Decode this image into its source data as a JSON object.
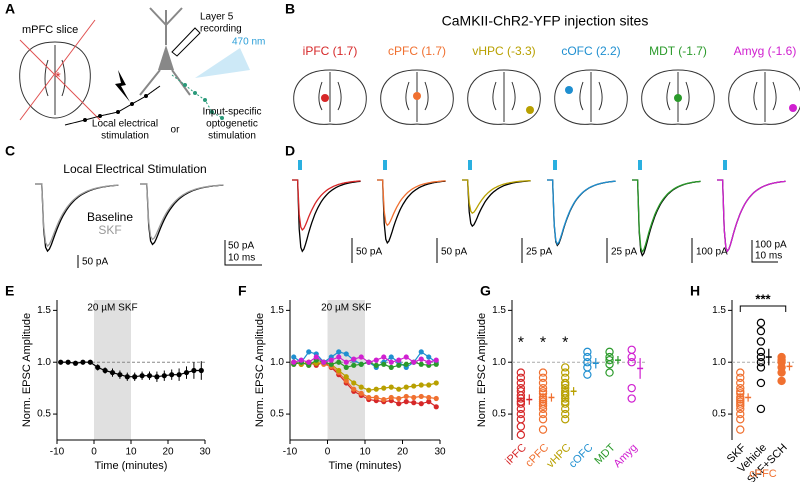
{
  "panels": {
    "A": {
      "label": "A",
      "title": "mPFC slice",
      "recording": [
        "Layer 5",
        "recording"
      ],
      "light": "470 nm",
      "local": [
        "Local electrical",
        "stimulation"
      ],
      "or": "or",
      "optogenetic": [
        "Input-specific",
        "optogenetic",
        "stimulation"
      ]
    },
    "B": {
      "label": "B",
      "title": "CaMKII-ChR2-YFP injection sites",
      "sites": [
        {
          "name": "iPFC (1.7)",
          "color": "#d62728"
        },
        {
          "name": "cPFC (1.7)",
          "color": "#f07030"
        },
        {
          "name": "vHPC (-3.3)",
          "color": "#b8a000"
        },
        {
          "name": "cOFC (2.2)",
          "color": "#1f8fd0"
        },
        {
          "name": "MDT (-1.7)",
          "color": "#2a9a2a"
        },
        {
          "name": "Amyg (-1.6)",
          "color": "#d020d0"
        }
      ]
    },
    "C": {
      "label": "C",
      "title": "Local Electrical Stimulation",
      "legend": [
        {
          "name": "Baseline",
          "color": "#000000"
        },
        {
          "name": "SKF",
          "color": "#999999"
        }
      ],
      "scalebars": [
        "50 pA",
        "50 pA",
        "10 ms"
      ]
    },
    "D": {
      "label": "D",
      "scalebars": [
        "50 pA",
        "50 pA",
        "25 pA",
        "25 pA",
        "100 pA",
        "100 pA",
        "10 ms"
      ]
    }
  },
  "chart_data": [
    {
      "panel": "E",
      "type": "line",
      "annotation": "20 µM SKF",
      "shade": [
        0,
        10
      ],
      "reference": 1,
      "xlabel": "Time (minutes)",
      "ylabel": "Norm. EPSC Amplitude",
      "x": [
        -9,
        -7,
        -5,
        -3,
        -1,
        1,
        3,
        5,
        7,
        9,
        11,
        13,
        15,
        17,
        19,
        21,
        23,
        25,
        27,
        29
      ],
      "series": [
        {
          "color": "#000000",
          "values": [
            1.0,
            1.0,
            0.99,
            1.0,
            1.0,
            0.95,
            0.92,
            0.9,
            0.88,
            0.86,
            0.86,
            0.87,
            0.87,
            0.86,
            0.87,
            0.88,
            0.88,
            0.9,
            0.92,
            0.92
          ],
          "errors": [
            0.02,
            0.02,
            0.02,
            0.02,
            0.02,
            0.03,
            0.03,
            0.04,
            0.04,
            0.04,
            0.04,
            0.04,
            0.04,
            0.05,
            0.05,
            0.05,
            0.06,
            0.06,
            0.08,
            0.09
          ]
        }
      ],
      "xlim": [
        -10,
        30
      ],
      "xticks": [
        -10,
        0,
        10,
        20,
        30
      ],
      "ylim": [
        0.25,
        1.6
      ],
      "yticks": [
        0.5,
        {
          "value": 1,
          "label": "1.0"
        },
        1.5
      ]
    },
    {
      "panel": "F",
      "type": "line",
      "annotation": "20 µM SKF",
      "shade": [
        0,
        10
      ],
      "reference": 1,
      "xlabel": "Time (minutes)",
      "ylabel": "Norm. EPSC Amplitude",
      "x": [
        -9,
        -7,
        -5,
        -3,
        -1,
        1,
        3,
        5,
        7,
        9,
        11,
        13,
        15,
        17,
        19,
        21,
        23,
        25,
        27,
        29
      ],
      "series": [
        {
          "color": "#d62728",
          "values": [
            1.0,
            0.98,
            1.0,
            0.97,
            1.0,
            0.95,
            0.88,
            0.8,
            0.72,
            0.68,
            0.64,
            0.63,
            0.62,
            0.63,
            0.6,
            0.62,
            0.61,
            0.6,
            0.62,
            0.57
          ]
        },
        {
          "color": "#f07030",
          "values": [
            0.98,
            1.0,
            0.97,
            1.0,
            0.98,
            0.96,
            0.9,
            0.82,
            0.74,
            0.7,
            0.66,
            0.66,
            0.64,
            0.66,
            0.65,
            0.67,
            0.66,
            0.67,
            0.66,
            0.65
          ]
        },
        {
          "color": "#b8a000",
          "values": [
            1.0,
            0.98,
            1.0,
            0.99,
            1.0,
            0.98,
            0.92,
            0.86,
            0.8,
            0.76,
            0.73,
            0.74,
            0.75,
            0.76,
            0.74,
            0.76,
            0.77,
            0.78,
            0.78,
            0.8
          ]
        },
        {
          "color": "#1f8fd0",
          "values": [
            1.05,
            1.0,
            1.1,
            1.08,
            1.0,
            1.05,
            1.1,
            1.08,
            1.02,
            0.98,
            1.0,
            0.95,
            1.0,
            1.05,
            1.0,
            0.95,
            1.0,
            1.1,
            1.05,
            1.0
          ]
        },
        {
          "color": "#2a9a2a",
          "values": [
            0.98,
            1.0,
            0.97,
            1.02,
            1.0,
            0.98,
            1.0,
            0.95,
            0.97,
            0.98,
            1.0,
            0.97,
            0.98,
            0.95,
            0.97,
            0.98,
            1.0,
            0.98,
            0.97,
            0.98
          ]
        },
        {
          "color": "#d020d0",
          "values": [
            1.0,
            1.02,
            1.0,
            1.05,
            1.0,
            1.02,
            1.05,
            1.0,
            1.03,
            1.05,
            1.0,
            1.02,
            1.05,
            1.0,
            1.02,
            1.05,
            1.0,
            1.03,
            1.0,
            1.02
          ]
        }
      ],
      "xlim": [
        -10,
        30
      ],
      "xticks": [
        -10,
        0,
        10,
        20,
        30
      ],
      "ylim": [
        0.25,
        1.6
      ],
      "yticks": [
        0.5,
        {
          "value": 1,
          "label": "1.0"
        },
        1.5
      ]
    },
    {
      "panel": "G",
      "type": "strip",
      "ylabel": "Norm. EPSC Amplitude",
      "reference": 1,
      "categories": [
        "iPFC",
        "cPFC",
        "vHPC",
        "cOFC",
        "MDT",
        "Amyg"
      ],
      "colors": [
        "#d62728",
        "#f07030",
        "#b8a000",
        "#1f8fd0",
        "#2a9a2a",
        "#d020d0"
      ],
      "filled": [
        false,
        false,
        false,
        false,
        false,
        false
      ],
      "significance": [
        "*",
        "*",
        "*",
        null,
        null,
        null
      ],
      "points": [
        [
          0.3,
          0.38,
          0.45,
          0.5,
          0.55,
          0.6,
          0.62,
          0.65,
          0.68,
          0.72,
          0.75,
          0.8,
          0.85,
          0.9
        ],
        [
          0.35,
          0.45,
          0.5,
          0.55,
          0.58,
          0.6,
          0.62,
          0.64,
          0.66,
          0.7,
          0.72,
          0.75,
          0.8,
          0.85,
          0.9
        ],
        [
          0.45,
          0.5,
          0.55,
          0.6,
          0.62,
          0.65,
          0.68,
          0.7,
          0.72,
          0.75,
          0.78,
          0.8,
          0.85,
          0.9,
          0.95
        ],
        [
          0.88,
          0.95,
          1.0,
          1.05,
          1.1
        ],
        [
          0.9,
          0.98,
          1.02,
          1.05,
          1.1
        ],
        [
          0.65,
          0.75,
          1.0,
          1.05,
          1.12
        ]
      ],
      "means": [
        0.64,
        0.66,
        0.72,
        0.99,
        1.02,
        0.94
      ],
      "sems": [
        0.05,
        0.04,
        0.04,
        0.05,
        0.04,
        0.1
      ],
      "ylim": [
        0.25,
        1.6
      ],
      "yticks": [
        0.5,
        {
          "value": 1,
          "label": "1.0"
        },
        1.5
      ]
    },
    {
      "panel": "H",
      "type": "strip",
      "reference": 1,
      "group": "cPFC",
      "group_color": "#f07030",
      "comparison": {
        "label": "***",
        "between": [
          "SKF",
          "Vehicle"
        ]
      },
      "categories": [
        "SKF",
        "Vehicle",
        "SKF+SCH"
      ],
      "colors": [
        "#f07030",
        "#000000",
        "#f07030"
      ],
      "filled": [
        false,
        false,
        true
      ],
      "points": [
        [
          0.35,
          0.45,
          0.5,
          0.55,
          0.58,
          0.6,
          0.62,
          0.64,
          0.66,
          0.7,
          0.72,
          0.75,
          0.8,
          0.85,
          0.9
        ],
        [
          0.55,
          0.8,
          0.95,
          1.0,
          1.05,
          1.1,
          1.2,
          1.3,
          1.38
        ],
        [
          0.82,
          0.9,
          0.95,
          1.0,
          1.02,
          1.05
        ]
      ],
      "means": [
        0.66,
        1.05,
        0.96
      ],
      "sems": [
        0.04,
        0.08,
        0.04
      ],
      "ylim": [
        0.25,
        1.6
      ],
      "yticks": [
        0.5,
        {
          "value": 1,
          "label": "1.0"
        },
        1.5
      ]
    }
  ]
}
